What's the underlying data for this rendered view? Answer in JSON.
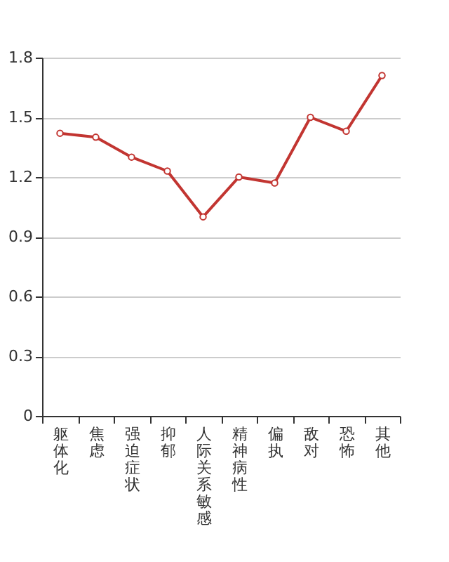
{
  "chart_data": {
    "type": "line",
    "categories": [
      "躯体化",
      "焦虑",
      "强迫症状",
      "抑郁",
      "人际关系敏感",
      "精神病性",
      "偏执",
      "敌对",
      "恐怖",
      "其他"
    ],
    "series": [
      {
        "color": "#c23531",
        "values": [
          1.42,
          1.4,
          1.3,
          1.23,
          1.0,
          1.2,
          1.17,
          1.5,
          1.43,
          1.71
        ]
      }
    ],
    "ylim": [
      0,
      1.8
    ],
    "yticks": [
      0,
      0.3,
      0.6,
      0.9,
      1.2,
      1.5,
      1.8
    ],
    "grid": "y",
    "marker": "circle"
  }
}
